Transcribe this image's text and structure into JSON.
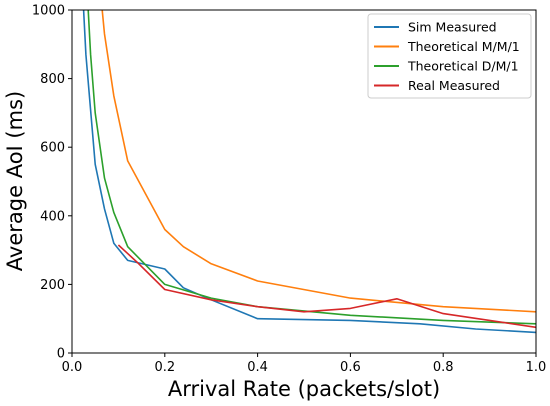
{
  "chart_data": {
    "type": "line",
    "title": "",
    "xlabel": "Arrival Rate (packets/slot)",
    "ylabel": "Average AoI (ms)",
    "xlim": [
      0.0,
      1.0
    ],
    "ylim": [
      0,
      1000
    ],
    "x_ticks": [
      0.0,
      0.2,
      0.4,
      0.6,
      0.8,
      1.0
    ],
    "x_tick_labels": [
      "0.0",
      "0.2",
      "0.4",
      "0.6",
      "0.8",
      "1.0"
    ],
    "y_ticks": [
      0,
      200,
      400,
      600,
      800,
      1000
    ],
    "y_tick_labels": [
      "0",
      "200",
      "400",
      "600",
      "800",
      "1000"
    ],
    "grid": false,
    "legend_position": "top-right",
    "series": [
      {
        "name": "Sim Measured",
        "color": "#1f77b4",
        "x": [
          0.025,
          0.03,
          0.05,
          0.07,
          0.09,
          0.12,
          0.2,
          0.24,
          0.3,
          0.4,
          0.6,
          0.75,
          0.87,
          1.0
        ],
        "y": [
          1000,
          870,
          550,
          420,
          320,
          270,
          245,
          190,
          155,
          100,
          95,
          85,
          70,
          60
        ]
      },
      {
        "name": "Theoretical M/M/1",
        "color": "#ff7f0e",
        "x": [
          0.065,
          0.07,
          0.09,
          0.12,
          0.2,
          0.24,
          0.3,
          0.4,
          0.6,
          0.8,
          1.0
        ],
        "y": [
          1000,
          930,
          750,
          560,
          360,
          310,
          260,
          210,
          160,
          135,
          120
        ]
      },
      {
        "name": "Theoretical D/M/1",
        "color": "#2ca02c",
        "x": [
          0.035,
          0.04,
          0.05,
          0.07,
          0.09,
          0.12,
          0.2,
          0.3,
          0.4,
          0.6,
          0.8,
          1.0
        ],
        "y": [
          1000,
          870,
          700,
          510,
          410,
          310,
          200,
          160,
          135,
          110,
          95,
          85
        ]
      },
      {
        "name": "Real Measured",
        "color": "#d62728",
        "x": [
          0.1,
          0.14,
          0.2,
          0.3,
          0.4,
          0.5,
          0.6,
          0.7,
          0.8,
          0.9,
          1.0
        ],
        "y": [
          315,
          265,
          185,
          155,
          135,
          120,
          130,
          158,
          115,
          95,
          75
        ]
      }
    ]
  }
}
